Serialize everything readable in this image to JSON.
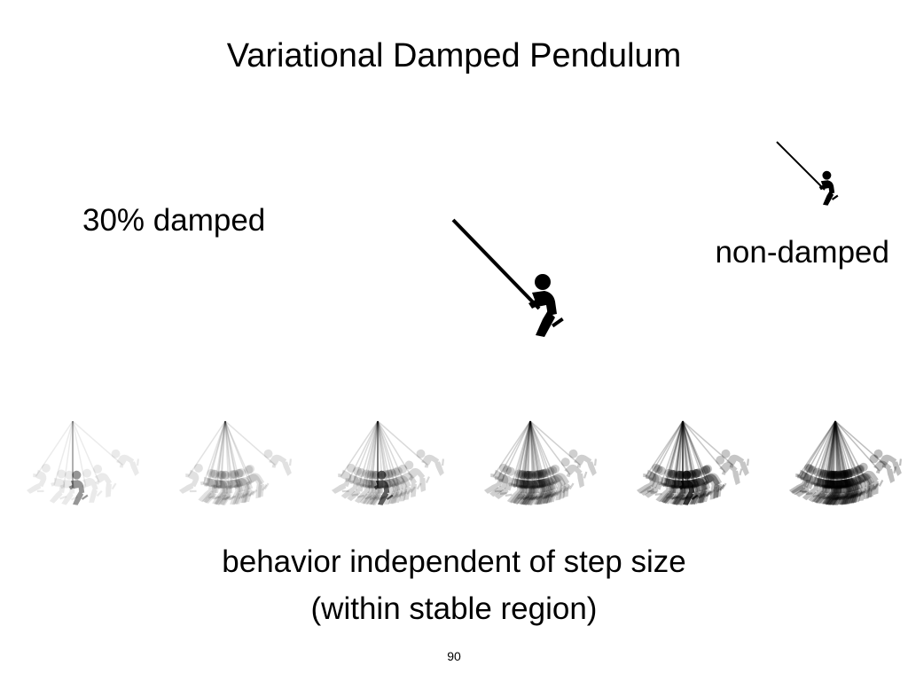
{
  "slide": {
    "title": "Variational Damped Pendulum",
    "label_damped": "30% damped",
    "label_non_damped": "non-damped",
    "caption_line1": "behavior independent of step size",
    "caption_line2": "(within stable region)",
    "page_number": "90"
  },
  "figures": {
    "icon": "person-on-swing-icon",
    "sequence_count": 6,
    "color": "#000000"
  }
}
